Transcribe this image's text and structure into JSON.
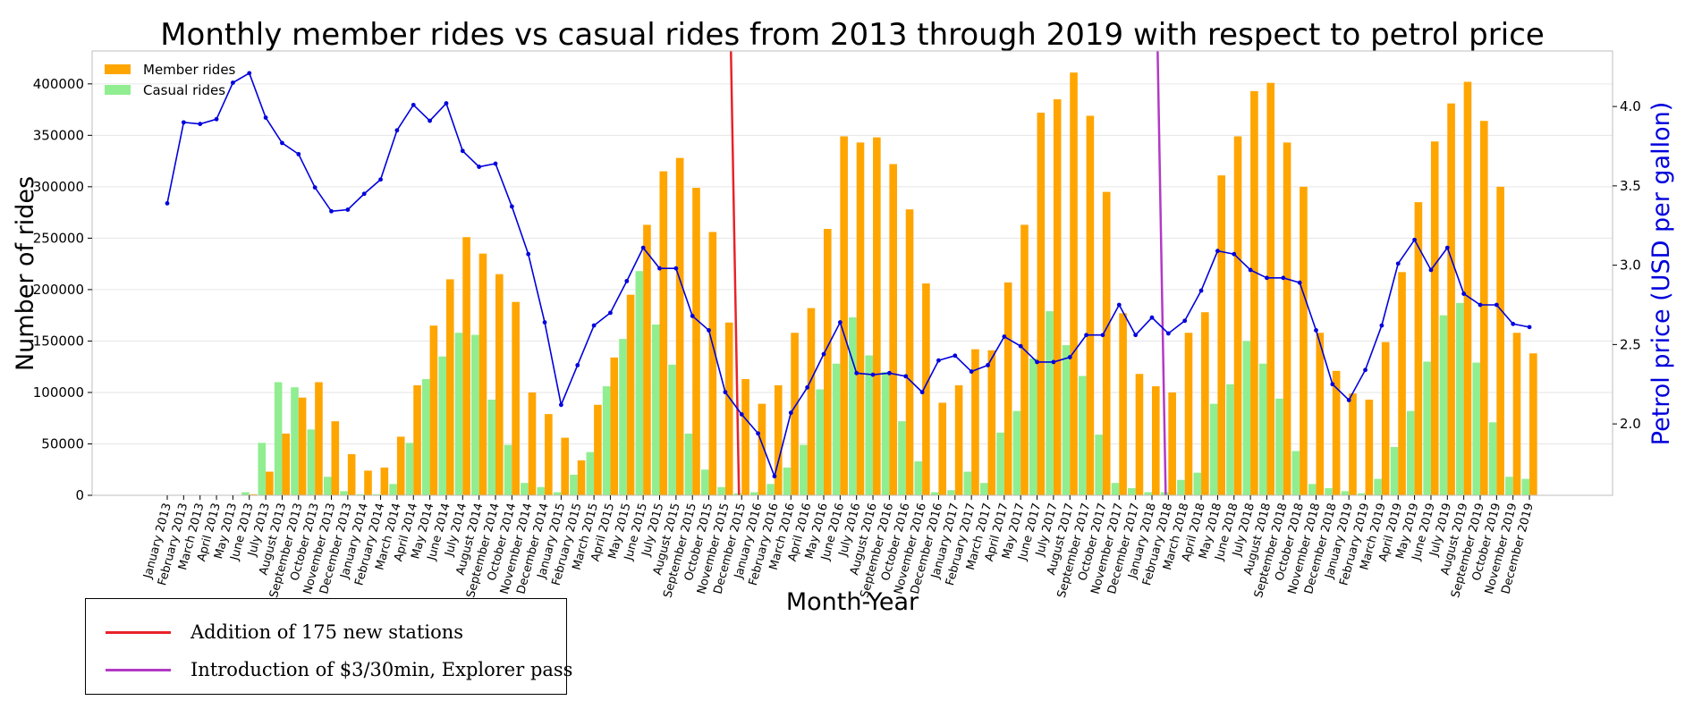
{
  "chart_data": {
    "type": "bar",
    "title": "Monthly member rides vs casual rides from 2013 through 2019 with respect to petrol price",
    "xlabel": "Month-Year",
    "ylabel": "Number of rides",
    "y2label": "Petrol price (USD per gallon)",
    "ylim": [
      0,
      432000
    ],
    "y2lim": [
      1.55,
      4.35
    ],
    "yticks": [
      0,
      50000,
      100000,
      150000,
      200000,
      250000,
      300000,
      350000,
      400000
    ],
    "y2ticks": [
      "2.0",
      "2.5",
      "3.0",
      "3.5",
      "4.0"
    ],
    "grid": true,
    "legend_position": "top-left",
    "categories": [
      "January 2013",
      "February 2013",
      "March 2013",
      "April 2013",
      "May 2013",
      "June 2013",
      "July 2013",
      "August 2013",
      "September 2013",
      "October 2013",
      "November 2013",
      "December 2013",
      "January 2014",
      "February 2014",
      "March 2014",
      "April 2014",
      "May 2014",
      "June 2014",
      "July 2014",
      "August 2014",
      "September 2014",
      "October 2014",
      "November 2014",
      "December 2014",
      "January 2015",
      "February 2015",
      "March 2015",
      "April 2015",
      "May 2015",
      "June 2015",
      "July 2015",
      "August 2015",
      "September 2015",
      "October 2015",
      "November 2015",
      "December 2015",
      "January 2016",
      "February 2016",
      "March 2016",
      "April 2016",
      "May 2016",
      "June 2016",
      "July 2016",
      "August 2016",
      "September 2016",
      "October 2016",
      "November 2016",
      "December 2016",
      "January 2017",
      "February 2017",
      "March 2017",
      "April 2017",
      "May 2017",
      "June 2017",
      "July 2017",
      "August 2017",
      "September 2017",
      "October 2017",
      "November 2017",
      "December 2017",
      "January 2018",
      "February 2018",
      "March 2018",
      "April 2018",
      "May 2018",
      "June 2018",
      "July 2018",
      "August 2018",
      "September 2018",
      "October 2018",
      "November 2018",
      "December 2018",
      "January 2019",
      "February 2019",
      "March 2019",
      "April 2019",
      "May 2019",
      "June 2019",
      "July 2019",
      "August 2019",
      "September 2019",
      "October 2019",
      "November 2019",
      "December 2019"
    ],
    "series": [
      {
        "name": "Member rides",
        "color": "#ffa500",
        "values": [
          0,
          0,
          0,
          0,
          0,
          1000,
          23000,
          60000,
          95000,
          110000,
          72000,
          40000,
          24000,
          27000,
          57000,
          107000,
          165000,
          210000,
          251000,
          235000,
          215000,
          188000,
          100000,
          79000,
          56000,
          34000,
          88000,
          134000,
          195000,
          263000,
          315000,
          328000,
          299000,
          256000,
          168000,
          113000,
          89000,
          107000,
          158000,
          182000,
          259000,
          349000,
          343000,
          348000,
          322000,
          278000,
          206000,
          90000,
          107000,
          142000,
          141000,
          207000,
          263000,
          372000,
          385000,
          411000,
          369000,
          295000,
          177000,
          118000,
          106000,
          100000,
          158000,
          178000,
          311000,
          349000,
          393000,
          401000,
          343000,
          300000,
          158000,
          121000,
          99000,
          93000,
          149000,
          217000,
          285000,
          344000,
          381000,
          402000,
          364000,
          300000,
          158000,
          138000
        ]
      },
      {
        "name": "Casual rides",
        "color": "#90ee90",
        "values": [
          0,
          0,
          0,
          0,
          0,
          3000,
          51000,
          110000,
          105000,
          64000,
          18000,
          4000,
          1000,
          1000,
          11000,
          51000,
          113000,
          135000,
          158000,
          156000,
          93000,
          49000,
          12000,
          8000,
          3000,
          20000,
          42000,
          106000,
          152000,
          218000,
          166000,
          127000,
          60000,
          25000,
          8000,
          2000,
          3000,
          11000,
          27000,
          49000,
          103000,
          128000,
          173000,
          136000,
          120000,
          72000,
          33000,
          3000,
          5000,
          23000,
          12000,
          61000,
          82000,
          133000,
          179000,
          146000,
          116000,
          59000,
          12000,
          7000,
          3000,
          3000,
          15000,
          22000,
          89000,
          108000,
          150000,
          128000,
          94000,
          43000,
          11000,
          7000,
          4000,
          2000,
          16000,
          47000,
          82000,
          130000,
          175000,
          187000,
          129000,
          71000,
          18000,
          16000
        ]
      },
      {
        "name": "Petrol price",
        "color": "#0000dd",
        "values": [
          3.39,
          3.9,
          3.89,
          3.92,
          4.15,
          4.21,
          3.93,
          3.77,
          3.7,
          3.49,
          3.34,
          3.35,
          3.45,
          3.54,
          3.85,
          4.01,
          3.91,
          4.02,
          3.72,
          3.62,
          3.64,
          3.37,
          3.07,
          2.64,
          2.12,
          2.37,
          2.62,
          2.7,
          2.9,
          3.11,
          2.98,
          2.98,
          2.68,
          2.59,
          2.2,
          2.06,
          1.94,
          1.67,
          2.07,
          2.23,
          2.44,
          2.64,
          2.32,
          2.31,
          2.32,
          2.3,
          2.2,
          2.4,
          2.43,
          2.33,
          2.37,
          2.55,
          2.49,
          2.39,
          2.39,
          2.42,
          2.56,
          2.56,
          2.75,
          2.56,
          2.67,
          2.57,
          2.65,
          2.84,
          3.09,
          3.07,
          2.97,
          2.92,
          2.92,
          2.89,
          2.59,
          2.25,
          2.15,
          2.34,
          2.62,
          3.01,
          3.16,
          2.97,
          3.11,
          2.82,
          2.75,
          2.75,
          2.63,
          2.61
        ]
      }
    ],
    "events": [
      {
        "label": "Addition of 175 new stations",
        "color": "#e8232a",
        "at": "December 2015"
      },
      {
        "label": "Introduction of $3/30min, Explorer pass",
        "color": "#b23ac5",
        "at": "February 2018"
      }
    ]
  }
}
